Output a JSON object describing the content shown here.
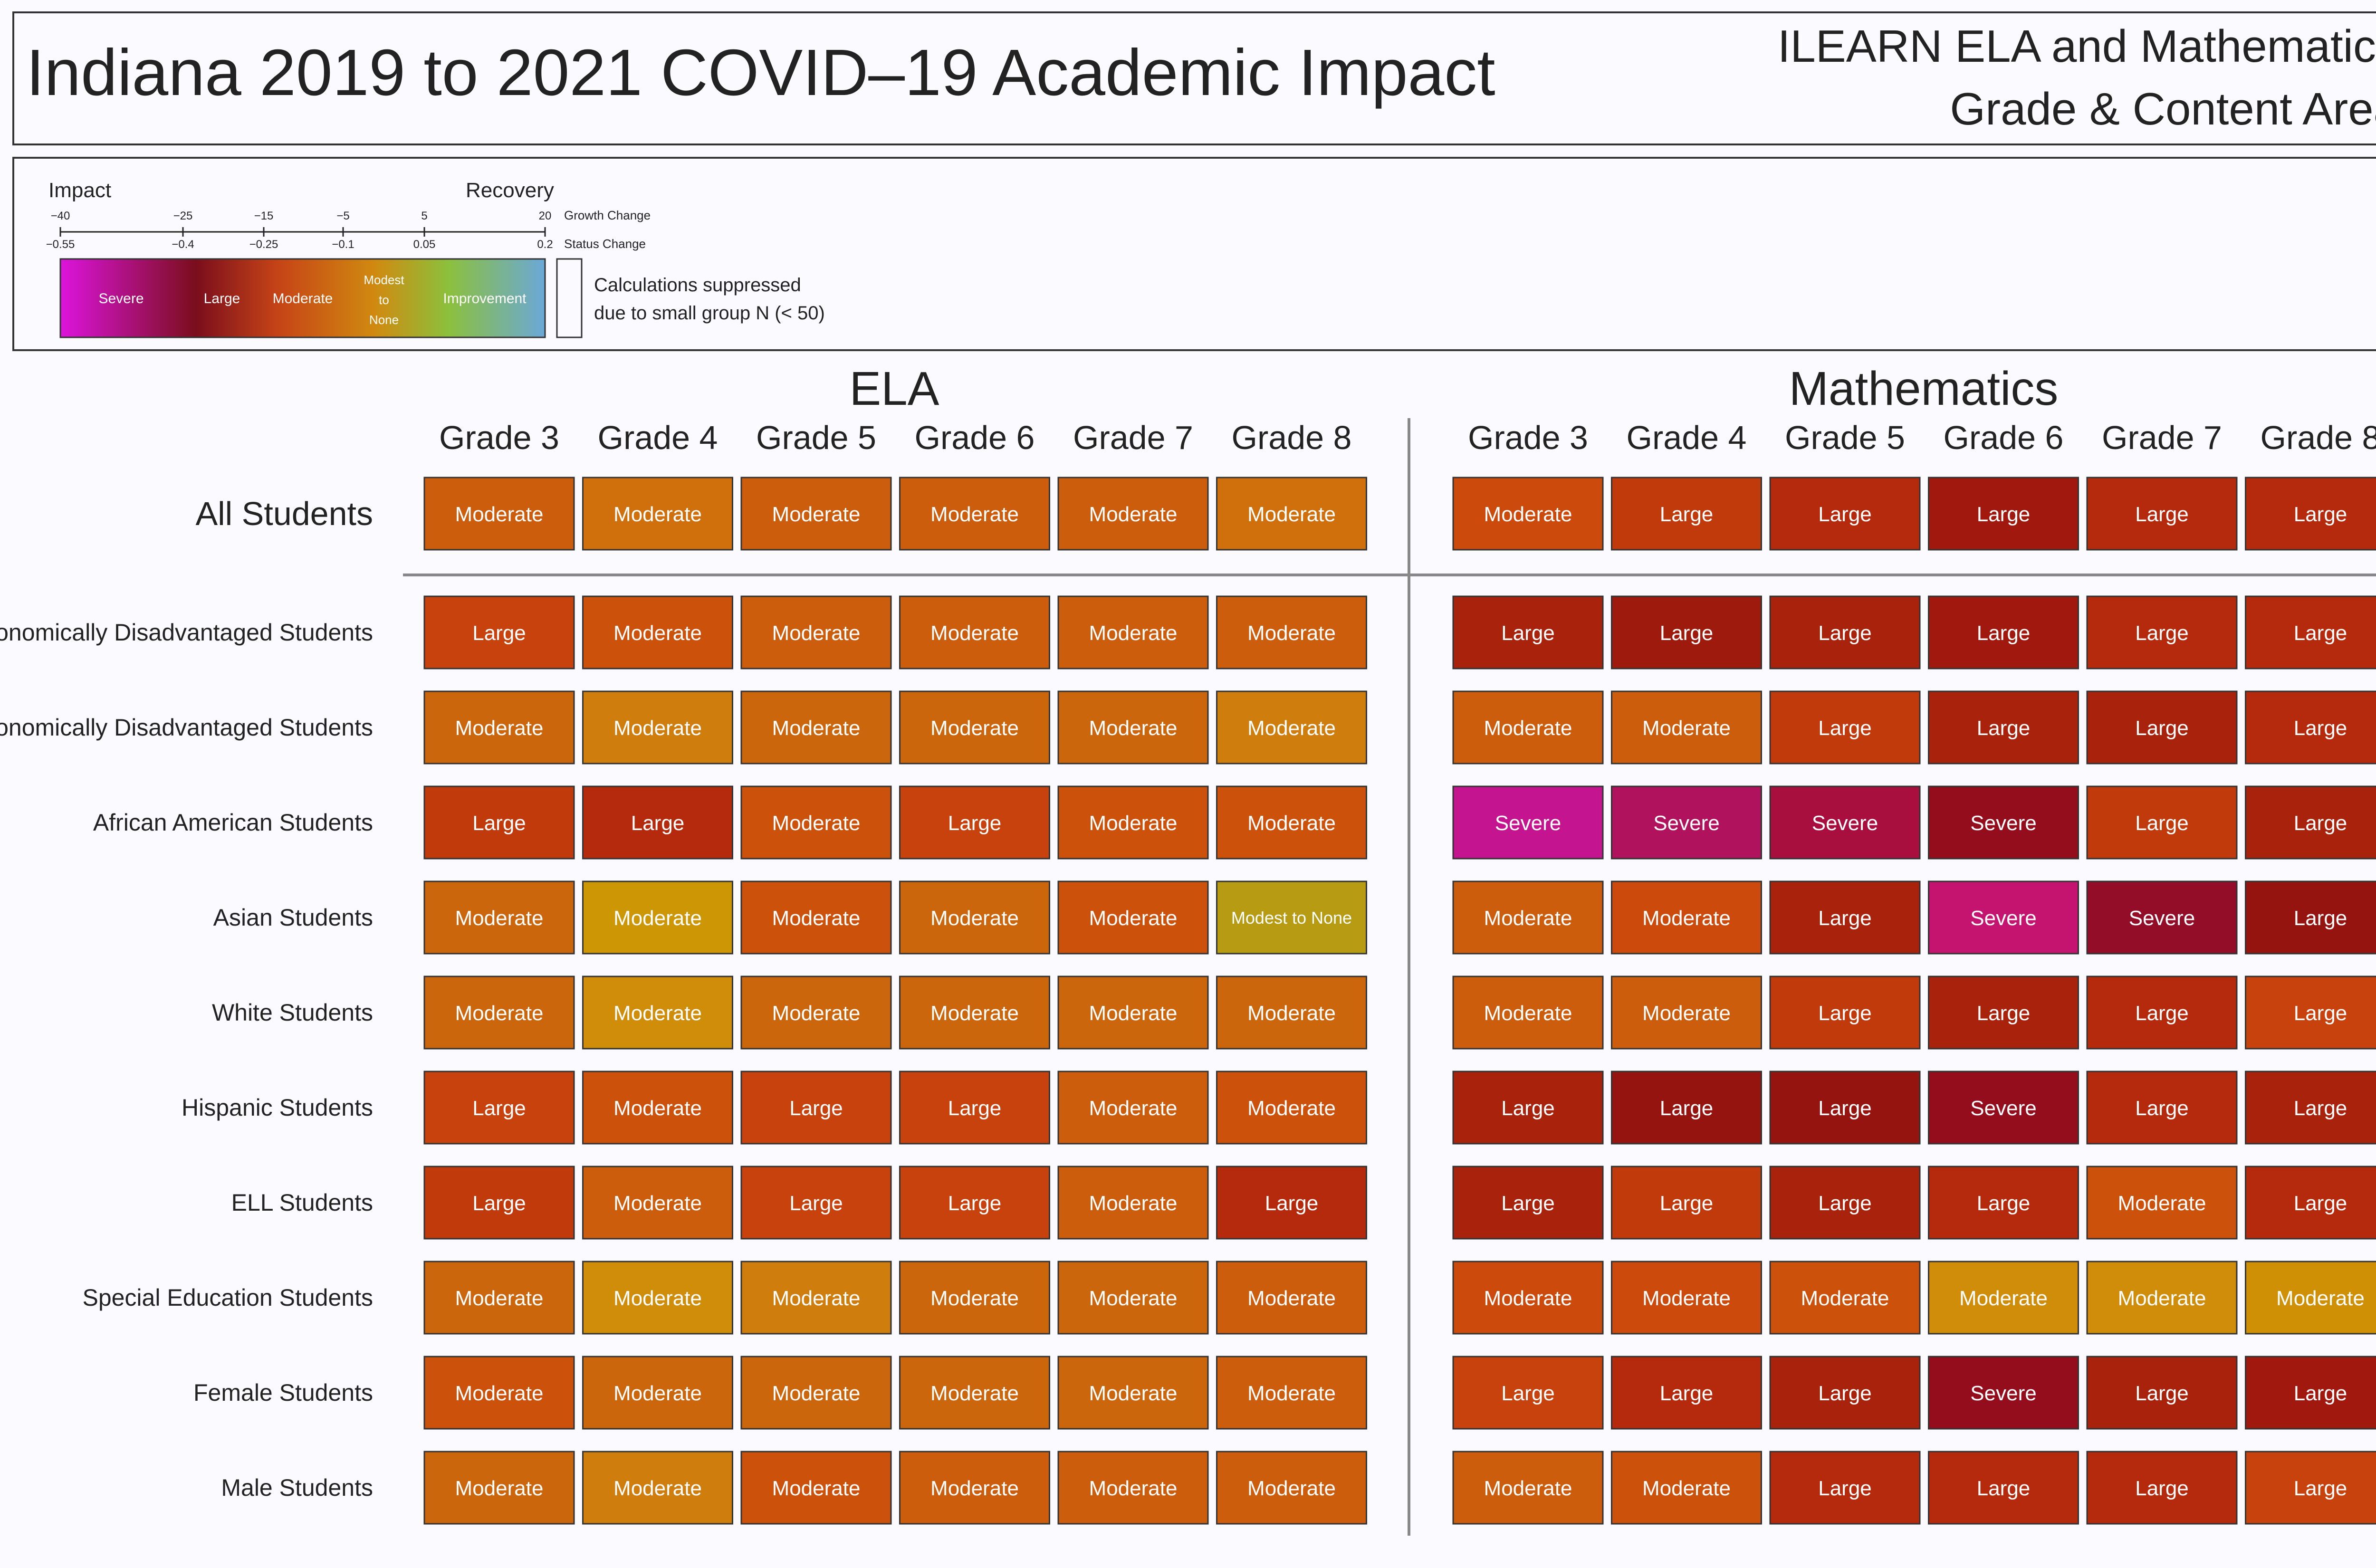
{
  "header": {
    "title": "Indiana 2019 to 2021 COVID–19 Academic Impact",
    "subtitle_line1": "ILEARN ELA and Mathematics",
    "subtitle_line2": "Grade & Content Area"
  },
  "legend": {
    "impact_label": "Impact",
    "recovery_label": "Recovery",
    "growth_ticks": [
      "−40",
      "−25",
      "−15",
      "−5",
      "5",
      "20"
    ],
    "status_ticks": [
      "−0.55",
      "−0.4",
      "−0.25",
      "−0.1",
      "0.05",
      "0.2"
    ],
    "growth_change_label": "Growth Change",
    "status_change_label": "Status Change",
    "category_labels": {
      "severe": "Severe",
      "large": "Large",
      "moderate": "Moderate",
      "modest_line1": "Modest",
      "modest_line2": "to",
      "modest_line3": "None",
      "improvement": "Improvement"
    },
    "suppressed_line1": "Calculations suppressed",
    "suppressed_line2": "due to small group N (< 50)",
    "gradient_colors": [
      "#dc14dc",
      "#7a0e1c",
      "#c64416",
      "#d08a10",
      "#8cc03c",
      "#6aa8d8"
    ]
  },
  "colors": {
    "severe": "#c41490",
    "severe_dark": "#930d28",
    "large_dark": "#a1190e",
    "large": "#b52a0c",
    "large_light": "#c6380c",
    "moderate_red": "#c7420c",
    "moderate": "#cc5d0c",
    "moderate_light": "#cf7d0c",
    "moderate_yellow": "#cd9605",
    "modest": "#b79b12",
    "divider": "#888888",
    "text_on_cell": "#ffffff"
  },
  "chart_data": {
    "type": "heatmap",
    "title": "Indiana 2019 to 2021 COVID–19 Academic Impact",
    "subjects": [
      "ELA",
      "Mathematics"
    ],
    "grades": [
      "Grade 3",
      "Grade 4",
      "Grade 5",
      "Grade 6",
      "Grade 7",
      "Grade 8"
    ],
    "groups": [
      "All Students",
      "onomically Disadvantaged Students",
      "onomically Disadvantaged Students",
      "African American Students",
      "Asian Students",
      "White Students",
      "Hispanic Students",
      "ELL Students",
      "Special Education Students",
      "Female Students",
      "Male Students"
    ],
    "cells": {
      "ELA": [
        [
          "Moderate",
          "Moderate",
          "Moderate",
          "Moderate",
          "Moderate",
          "Moderate"
        ],
        [
          "Large",
          "Moderate",
          "Moderate",
          "Moderate",
          "Moderate",
          "Moderate"
        ],
        [
          "Moderate",
          "Moderate",
          "Moderate",
          "Moderate",
          "Moderate",
          "Moderate"
        ],
        [
          "Large",
          "Large",
          "Moderate",
          "Large",
          "Moderate",
          "Moderate"
        ],
        [
          "Moderate",
          "Moderate",
          "Moderate",
          "Moderate",
          "Moderate",
          "Modest to None"
        ],
        [
          "Moderate",
          "Moderate",
          "Moderate",
          "Moderate",
          "Moderate",
          "Moderate"
        ],
        [
          "Large",
          "Moderate",
          "Large",
          "Large",
          "Moderate",
          "Moderate"
        ],
        [
          "Large",
          "Moderate",
          "Large",
          "Large",
          "Moderate",
          "Large"
        ],
        [
          "Moderate",
          "Moderate",
          "Moderate",
          "Moderate",
          "Moderate",
          "Moderate"
        ],
        [
          "Moderate",
          "Moderate",
          "Moderate",
          "Moderate",
          "Moderate",
          "Moderate"
        ],
        [
          "Moderate",
          "Moderate",
          "Moderate",
          "Moderate",
          "Moderate",
          "Moderate"
        ]
      ],
      "Mathematics": [
        [
          "Moderate",
          "Large",
          "Large",
          "Large",
          "Large",
          "Large"
        ],
        [
          "Large",
          "Large",
          "Large",
          "Large",
          "Large",
          "Large"
        ],
        [
          "Moderate",
          "Moderate",
          "Large",
          "Large",
          "Large",
          "Large"
        ],
        [
          "Severe",
          "Severe",
          "Severe",
          "Severe",
          "Large",
          "Large"
        ],
        [
          "Moderate",
          "Moderate",
          "Large",
          "Severe",
          "Severe",
          "Large"
        ],
        [
          "Moderate",
          "Moderate",
          "Large",
          "Large",
          "Large",
          "Large"
        ],
        [
          "Large",
          "Large",
          "Large",
          "Severe",
          "Large",
          "Large"
        ],
        [
          "Large",
          "Large",
          "Large",
          "Large",
          "Moderate",
          "Large"
        ],
        [
          "Moderate",
          "Moderate",
          "Moderate",
          "Moderate",
          "Moderate",
          "Moderate"
        ],
        [
          "Large",
          "Large",
          "Large",
          "Severe",
          "Large",
          "Large"
        ],
        [
          "Moderate",
          "Moderate",
          "Large",
          "Large",
          "Large",
          "Large"
        ]
      ]
    },
    "cell_colors": {
      "ELA": [
        [
          "#cc5d0c",
          "#cf700c",
          "#cc5d0c",
          "#cc5d0c",
          "#cc5d0c",
          "#cf700c"
        ],
        [
          "#c7420c",
          "#cc520c",
          "#cc5d0c",
          "#cc5d0c",
          "#cc5d0c",
          "#cc5d0c"
        ],
        [
          "#cc660c",
          "#cf7d0c",
          "#cc660c",
          "#cc660c",
          "#cc660c",
          "#cf7d0c"
        ],
        [
          "#c03a0c",
          "#b52a0c",
          "#cc520c",
          "#c7420c",
          "#cc520c",
          "#cc520c"
        ],
        [
          "#cc660c",
          "#cd9605",
          "#cc520c",
          "#cc660c",
          "#cc520c",
          "#b79b12"
        ],
        [
          "#cc660c",
          "#cf8d0a",
          "#cc660c",
          "#cc660c",
          "#cc660c",
          "#cc660c"
        ],
        [
          "#c7420c",
          "#cc520c",
          "#c7420c",
          "#c7420c",
          "#cc5d0c",
          "#cc520c"
        ],
        [
          "#c03a0c",
          "#cc5d0c",
          "#c7420c",
          "#c7420c",
          "#cc5d0c",
          "#b52a0c"
        ],
        [
          "#cc660c",
          "#cf8d0a",
          "#cf7d0c",
          "#cc660c",
          "#cc660c",
          "#cc5d0c"
        ],
        [
          "#cc520c",
          "#cc660c",
          "#cc660c",
          "#cc660c",
          "#cc660c",
          "#cc5d0c"
        ],
        [
          "#cc660c",
          "#cf7d0c",
          "#cc520c",
          "#cc5d0c",
          "#cc5d0c",
          "#cc5d0c"
        ]
      ],
      "Mathematics": [
        [
          "#cc4a0c",
          "#c03a0c",
          "#b52a0c",
          "#a1190e",
          "#b52a0c",
          "#b52a0c"
        ],
        [
          "#a8220c",
          "#9d1a0d",
          "#a8220c",
          "#a1190e",
          "#b52a0c",
          "#b52a0c"
        ],
        [
          "#cc5d0c",
          "#cc5d0c",
          "#c03a0c",
          "#a8220c",
          "#a8220c",
          "#b52a0c"
        ],
        [
          "#c41490",
          "#b0125e",
          "#a80f3e",
          "#930d1c",
          "#c03a0c",
          "#a8220c"
        ],
        [
          "#cc5d0c",
          "#cc4a0c",
          "#a8220c",
          "#c41470",
          "#930d28",
          "#961410"
        ],
        [
          "#cc5d0c",
          "#cc5d0c",
          "#c03a0c",
          "#a8220c",
          "#b52a0c",
          "#c7420c"
        ],
        [
          "#a8220c",
          "#961410",
          "#961410",
          "#930d1c",
          "#b52a0c",
          "#a8220c"
        ],
        [
          "#a8220c",
          "#c03a0c",
          "#a8220c",
          "#b52a0c",
          "#cc520c",
          "#b52a0c"
        ],
        [
          "#cc4a0c",
          "#cc4a0c",
          "#cc520c",
          "#cf8d0a",
          "#cf8d0a",
          "#cf9005"
        ],
        [
          "#c7420c",
          "#b52a0c",
          "#a8220c",
          "#930d1c",
          "#a8220c",
          "#a1190e"
        ],
        [
          "#cc5d0c",
          "#cc520c",
          "#b52a0c",
          "#b52a0c",
          "#b52a0c",
          "#c7420c"
        ]
      ]
    }
  }
}
